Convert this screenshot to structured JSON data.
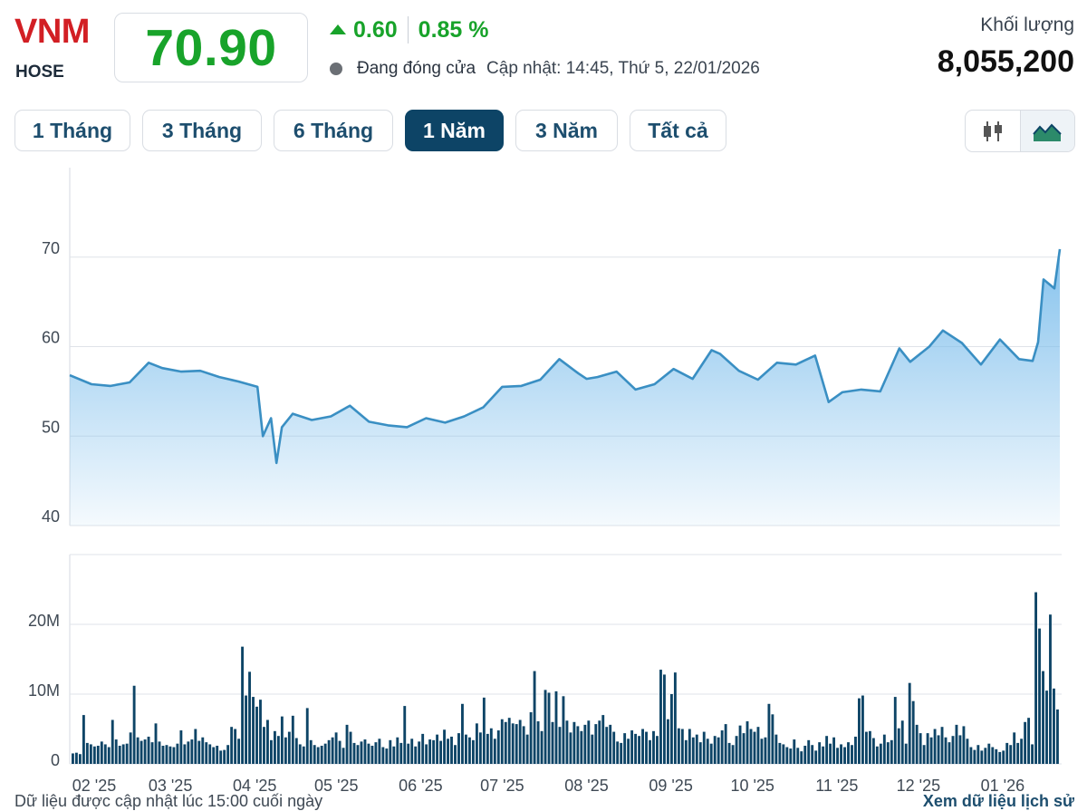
{
  "header": {
    "symbol": "VNM",
    "exchange": "HOSE",
    "price": "70.90",
    "change": "0.60",
    "change_pct": "0.85 %",
    "status": "Đang đóng cửa",
    "updated": "Cập nhật: 14:45, Thứ 5, 22/01/2026",
    "volume_label": "Khối lượng",
    "volume_value": "8,055,200",
    "up_color": "#18a32a",
    "symbol_color": "#d21f24"
  },
  "tabs": [
    {
      "label": "1 Tháng",
      "active": false
    },
    {
      "label": "3 Tháng",
      "active": false
    },
    {
      "label": "6 Tháng",
      "active": false
    },
    {
      "label": "1 Năm",
      "active": true
    },
    {
      "label": "3 Năm",
      "active": false
    },
    {
      "label": "Tất cả",
      "active": false
    }
  ],
  "chart_type_toggle": [
    {
      "icon": "candlestick-icon",
      "active": false
    },
    {
      "icon": "area-chart-icon",
      "active": true
    }
  ],
  "chart_data": [
    {
      "type": "area",
      "ylim": [
        40,
        80
      ],
      "y_ticks": [
        40,
        50,
        60,
        70
      ],
      "grid": true,
      "line_color": "#3a8fc3",
      "fill_color": "#7fbfec",
      "x": [
        "2025-01-23",
        "2025-01-31",
        "2025-02-07",
        "2025-02-14",
        "2025-02-21",
        "2025-02-26",
        "2025-03-05",
        "2025-03-12",
        "2025-03-19",
        "2025-03-26",
        "2025-04-02",
        "2025-04-04",
        "2025-04-07",
        "2025-04-09",
        "2025-04-11",
        "2025-04-15",
        "2025-04-22",
        "2025-04-29",
        "2025-05-06",
        "2025-05-13",
        "2025-05-20",
        "2025-05-27",
        "2025-06-03",
        "2025-06-10",
        "2025-06-17",
        "2025-06-24",
        "2025-07-01",
        "2025-07-08",
        "2025-07-15",
        "2025-07-22",
        "2025-07-29",
        "2025-08-01",
        "2025-08-05",
        "2025-08-12",
        "2025-08-19",
        "2025-08-26",
        "2025-09-02",
        "2025-09-09",
        "2025-09-16",
        "2025-09-19",
        "2025-09-26",
        "2025-10-03",
        "2025-10-10",
        "2025-10-17",
        "2025-10-24",
        "2025-10-29",
        "2025-11-03",
        "2025-11-10",
        "2025-11-17",
        "2025-11-24",
        "2025-11-28",
        "2025-12-05",
        "2025-12-10",
        "2025-12-17",
        "2025-12-24",
        "2025-12-31",
        "2026-01-07",
        "2026-01-12",
        "2026-01-14",
        "2026-01-16",
        "2026-01-20",
        "2026-01-22"
      ],
      "values": [
        56.8,
        55.8,
        55.6,
        56.0,
        58.2,
        57.6,
        57.2,
        57.3,
        56.6,
        56.1,
        55.5,
        50.0,
        52.0,
        47.0,
        51.0,
        52.5,
        51.8,
        52.2,
        53.4,
        51.6,
        51.2,
        51.0,
        52.0,
        51.5,
        52.2,
        53.2,
        55.5,
        55.6,
        56.3,
        58.6,
        57.0,
        56.4,
        56.6,
        57.2,
        55.2,
        55.8,
        57.5,
        56.4,
        59.6,
        59.2,
        57.3,
        56.3,
        58.2,
        58.0,
        59.0,
        53.8,
        54.9,
        55.2,
        55.0,
        59.8,
        58.3,
        60.0,
        61.8,
        60.4,
        58.0,
        60.8,
        58.6,
        58.4,
        60.5,
        67.5,
        66.5,
        70.9
      ]
    },
    {
      "type": "bar",
      "ylim": [
        0,
        30
      ],
      "y_ticks": [
        {
          "value": 0,
          "label": "0"
        },
        {
          "value": 10,
          "label": "10M"
        },
        {
          "value": 20,
          "label": "20M"
        }
      ],
      "unit": "M",
      "bar_color": "#0d4466",
      "values": [
        1.5,
        1.6,
        1.4,
        7.0,
        3.0,
        2.8,
        2.5,
        2.6,
        3.2,
        2.8,
        2.4,
        6.3,
        3.5,
        2.6,
        2.8,
        2.9,
        4.5,
        11.2,
        3.8,
        3.3,
        3.5,
        3.9,
        3.1,
        5.8,
        3.2,
        2.6,
        2.7,
        2.5,
        2.4,
        2.9,
        4.8,
        2.8,
        3.2,
        3.5,
        5.0,
        3.3,
        3.8,
        3.1,
        2.8,
        2.4,
        2.6,
        1.9,
        2.0,
        2.7,
        5.3,
        5.0,
        3.6,
        16.8,
        9.8,
        13.2,
        9.6,
        8.2,
        9.2,
        5.3,
        6.3,
        3.4,
        4.7,
        4.0,
        6.8,
        3.8,
        4.6,
        6.9,
        3.7,
        2.8,
        2.5,
        8.0,
        3.4,
        2.7,
        2.4,
        2.6,
        2.9,
        3.4,
        3.8,
        4.5,
        3.3,
        2.3,
        5.6,
        4.6,
        3.0,
        2.7,
        3.2,
        3.5,
        2.9,
        2.6,
        3.1,
        3.6,
        2.4,
        2.2,
        3.4,
        2.5,
        3.8,
        3.0,
        8.3,
        2.9,
        3.6,
        2.5,
        3.2,
        4.3,
        2.8,
        3.5,
        3.4,
        4.2,
        3.3,
        4.9,
        3.6,
        3.9,
        2.7,
        4.4,
        8.6,
        4.2,
        3.8,
        3.4,
        5.8,
        4.5,
        9.5,
        4.3,
        5.1,
        3.6,
        4.8,
        6.4,
        6.0,
        6.6,
        5.8,
        5.7,
        6.3,
        5.4,
        4.2,
        7.4,
        13.3,
        6.1,
        4.7,
        10.6,
        10.2,
        6.0,
        10.4,
        5.3,
        9.7,
        6.2,
        4.5,
        6.0,
        5.4,
        4.7,
        5.6,
        6.2,
        4.2,
        5.7,
        6.2,
        7.0,
        5.3,
        5.6,
        4.6,
        3.2,
        3.0,
        4.4,
        3.6,
        4.8,
        4.3,
        4.0,
        5.0,
        4.6,
        3.4,
        4.7,
        4.0,
        13.5,
        12.8,
        6.4,
        10.0,
        13.1,
        5.1,
        5.0,
        3.4,
        5.0,
        3.8,
        4.2,
        3.1,
        4.6,
        3.6,
        2.9,
        4.0,
        3.8,
        4.8,
        5.7,
        3.0,
        2.7,
        4.0,
        5.5,
        4.4,
        6.1,
        5.0,
        4.6,
        5.3,
        3.6,
        3.8,
        8.6,
        7.1,
        4.2,
        3.0,
        2.8,
        2.4,
        2.2,
        3.5,
        2.3,
        1.8,
        2.6,
        3.4,
        2.7,
        1.9,
        3.1,
        2.5,
        4.0,
        2.9,
        3.8,
        2.3,
        2.8,
        2.4,
        3.1,
        2.7,
        3.9,
        9.4,
        9.8,
        4.6,
        4.7,
        3.7,
        2.5,
        2.9,
        4.2,
        3.1,
        3.4,
        9.6,
        5.1,
        6.2,
        2.9,
        11.6,
        9.0,
        5.6,
        4.4,
        2.7,
        4.4,
        3.8,
        5.0,
        4.1,
        5.3,
        3.8,
        3.1,
        4.0,
        5.6,
        4.1,
        5.4,
        3.6,
        2.4,
        2.0,
        2.7,
        1.9,
        2.3,
        2.9,
        2.4,
        2.1,
        1.7,
        1.9,
        3.0,
        2.7,
        4.5,
        3.0,
        3.6,
        6.0,
        6.6,
        2.8,
        24.6,
        19.4,
        13.3,
        10.5,
        21.4,
        10.8,
        7.8
      ]
    }
  ],
  "x_axis_labels": [
    "02 '25",
    "03 '25",
    "04 '25",
    "05 '25",
    "06 '25",
    "07 '25",
    "08 '25",
    "09 '25",
    "10 '25",
    "11 '25",
    "12 '25",
    "01 '26"
  ],
  "footer": {
    "note": "Dữ liệu được cập nhật lúc 15:00 cuối ngày",
    "link": "Xem dữ liệu lịch sử"
  }
}
